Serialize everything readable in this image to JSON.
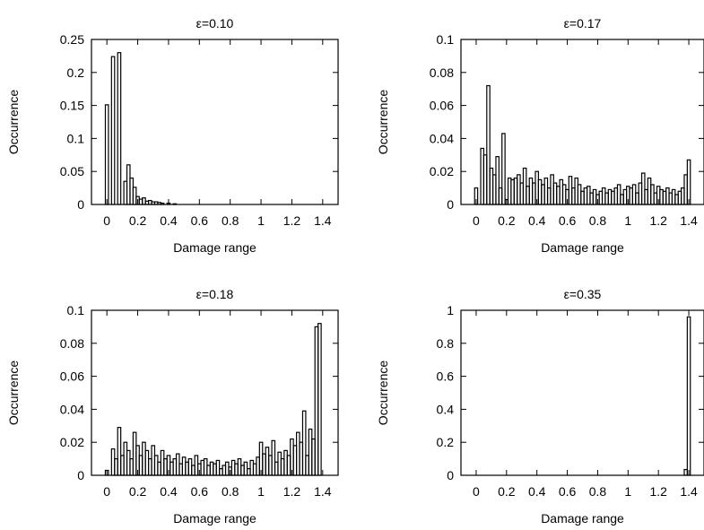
{
  "chart_data": [
    {
      "type": "bar",
      "title": "ε=0.10",
      "xlabel": "Damage range",
      "ylabel": "Occurrence",
      "xlim": [
        -0.1,
        1.5
      ],
      "ylim": [
        0,
        0.25
      ],
      "xticks": [
        "0",
        "0.2",
        "0.4",
        "0.6",
        "0.8",
        "1",
        "1.2",
        "1.4"
      ],
      "yticks": [
        "0",
        "0.05",
        "0.1",
        "0.15",
        "0.2",
        "0.25"
      ],
      "bin_width": 0.02,
      "x": [
        0.0,
        0.02,
        0.04,
        0.06,
        0.08,
        0.1,
        0.12,
        0.14,
        0.16,
        0.18,
        0.2,
        0.22,
        0.24,
        0.26,
        0.28,
        0.3,
        0.32,
        0.34,
        0.36,
        0.4,
        0.44
      ],
      "values": [
        0.151,
        0.0,
        0.224,
        0.0,
        0.23,
        0.0,
        0.035,
        0.06,
        0.04,
        0.026,
        0.012,
        0.008,
        0.01,
        0.005,
        0.006,
        0.004,
        0.004,
        0.003,
        0.002,
        0.002,
        0.001
      ]
    },
    {
      "type": "bar",
      "title": "ε=0.17",
      "xlabel": "Damage range",
      "ylabel": "Occurrence",
      "xlim": [
        -0.1,
        1.5
      ],
      "ylim": [
        0,
        0.1
      ],
      "xticks": [
        "0",
        "0.2",
        "0.4",
        "0.6",
        "0.8",
        "1",
        "1.2",
        "1.4"
      ],
      "yticks": [
        "0",
        "0.02",
        "0.04",
        "0.06",
        "0.08",
        "0.1"
      ],
      "bin_width": 0.02,
      "x": [
        0.0,
        0.02,
        0.04,
        0.06,
        0.08,
        0.1,
        0.12,
        0.14,
        0.16,
        0.18,
        0.2,
        0.22,
        0.24,
        0.26,
        0.28,
        0.3,
        0.32,
        0.34,
        0.36,
        0.38,
        0.4,
        0.42,
        0.44,
        0.46,
        0.48,
        0.5,
        0.52,
        0.54,
        0.56,
        0.58,
        0.6,
        0.62,
        0.64,
        0.66,
        0.68,
        0.7,
        0.72,
        0.74,
        0.76,
        0.78,
        0.8,
        0.82,
        0.84,
        0.86,
        0.88,
        0.9,
        0.92,
        0.94,
        0.96,
        0.98,
        1.0,
        1.02,
        1.04,
        1.06,
        1.08,
        1.1,
        1.12,
        1.14,
        1.16,
        1.18,
        1.2,
        1.22,
        1.24,
        1.26,
        1.28,
        1.3,
        1.32,
        1.34,
        1.36,
        1.38,
        1.4
      ],
      "values": [
        0.01,
        0.0,
        0.034,
        0.03,
        0.072,
        0.022,
        0.018,
        0.029,
        0.01,
        0.043,
        0.003,
        0.016,
        0.015,
        0.016,
        0.018,
        0.013,
        0.022,
        0.011,
        0.016,
        0.013,
        0.02,
        0.015,
        0.012,
        0.016,
        0.01,
        0.018,
        0.013,
        0.011,
        0.015,
        0.012,
        0.009,
        0.017,
        0.01,
        0.016,
        0.012,
        0.008,
        0.01,
        0.011,
        0.007,
        0.009,
        0.006,
        0.008,
        0.01,
        0.007,
        0.009,
        0.008,
        0.01,
        0.012,
        0.006,
        0.009,
        0.011,
        0.01,
        0.012,
        0.007,
        0.013,
        0.019,
        0.009,
        0.016,
        0.012,
        0.007,
        0.011,
        0.009,
        0.008,
        0.01,
        0.007,
        0.009,
        0.006,
        0.008,
        0.01,
        0.018,
        0.027
      ]
    },
    {
      "type": "bar",
      "title": "ε=0.18",
      "xlabel": "Damage range",
      "ylabel": "Occurrence",
      "xlim": [
        -0.1,
        1.5
      ],
      "ylim": [
        0,
        0.1
      ],
      "xticks": [
        "0",
        "0.2",
        "0.4",
        "0.6",
        "0.8",
        "1",
        "1.2",
        "1.4"
      ],
      "yticks": [
        "0",
        "0.02",
        "0.04",
        "0.06",
        "0.08",
        "0.1"
      ],
      "bin_width": 0.02,
      "x": [
        0.0,
        0.02,
        0.04,
        0.06,
        0.08,
        0.1,
        0.12,
        0.14,
        0.16,
        0.18,
        0.2,
        0.22,
        0.24,
        0.26,
        0.28,
        0.3,
        0.32,
        0.34,
        0.36,
        0.38,
        0.4,
        0.42,
        0.44,
        0.46,
        0.48,
        0.5,
        0.52,
        0.54,
        0.56,
        0.58,
        0.6,
        0.62,
        0.64,
        0.66,
        0.68,
        0.7,
        0.72,
        0.74,
        0.76,
        0.78,
        0.8,
        0.82,
        0.84,
        0.86,
        0.88,
        0.9,
        0.92,
        0.94,
        0.96,
        0.98,
        1.0,
        1.02,
        1.04,
        1.06,
        1.08,
        1.1,
        1.12,
        1.14,
        1.16,
        1.18,
        1.2,
        1.22,
        1.24,
        1.26,
        1.28,
        1.3,
        1.32,
        1.34,
        1.36,
        1.38,
        1.4
      ],
      "values": [
        0.003,
        0.0,
        0.016,
        0.01,
        0.029,
        0.012,
        0.02,
        0.015,
        0.01,
        0.026,
        0.018,
        0.012,
        0.02,
        0.015,
        0.01,
        0.018,
        0.012,
        0.008,
        0.015,
        0.01,
        0.012,
        0.008,
        0.01,
        0.013,
        0.007,
        0.011,
        0.008,
        0.01,
        0.006,
        0.012,
        0.007,
        0.009,
        0.01,
        0.006,
        0.008,
        0.007,
        0.009,
        0.004,
        0.006,
        0.008,
        0.005,
        0.009,
        0.007,
        0.01,
        0.006,
        0.008,
        0.004,
        0.009,
        0.007,
        0.011,
        0.02,
        0.013,
        0.017,
        0.012,
        0.021,
        0.008,
        0.014,
        0.01,
        0.015,
        0.012,
        0.022,
        0.018,
        0.026,
        0.02,
        0.039,
        0.012,
        0.028,
        0.022,
        0.09,
        0.092,
        0.0
      ]
    },
    {
      "type": "bar",
      "title": "ε=0.35",
      "xlabel": "Damage range",
      "ylabel": "Occurrence",
      "xlim": [
        -0.1,
        1.5
      ],
      "ylim": [
        0,
        1
      ],
      "xticks": [
        "0",
        "0.2",
        "0.4",
        "0.6",
        "0.8",
        "1",
        "1.2",
        "1.4"
      ],
      "yticks": [
        "0",
        "0.2",
        "0.4",
        "0.6",
        "0.8",
        "1"
      ],
      "bin_width": 0.02,
      "x": [
        1.36,
        1.38,
        1.4
      ],
      "values": [
        0.0,
        0.035,
        0.96
      ]
    }
  ]
}
